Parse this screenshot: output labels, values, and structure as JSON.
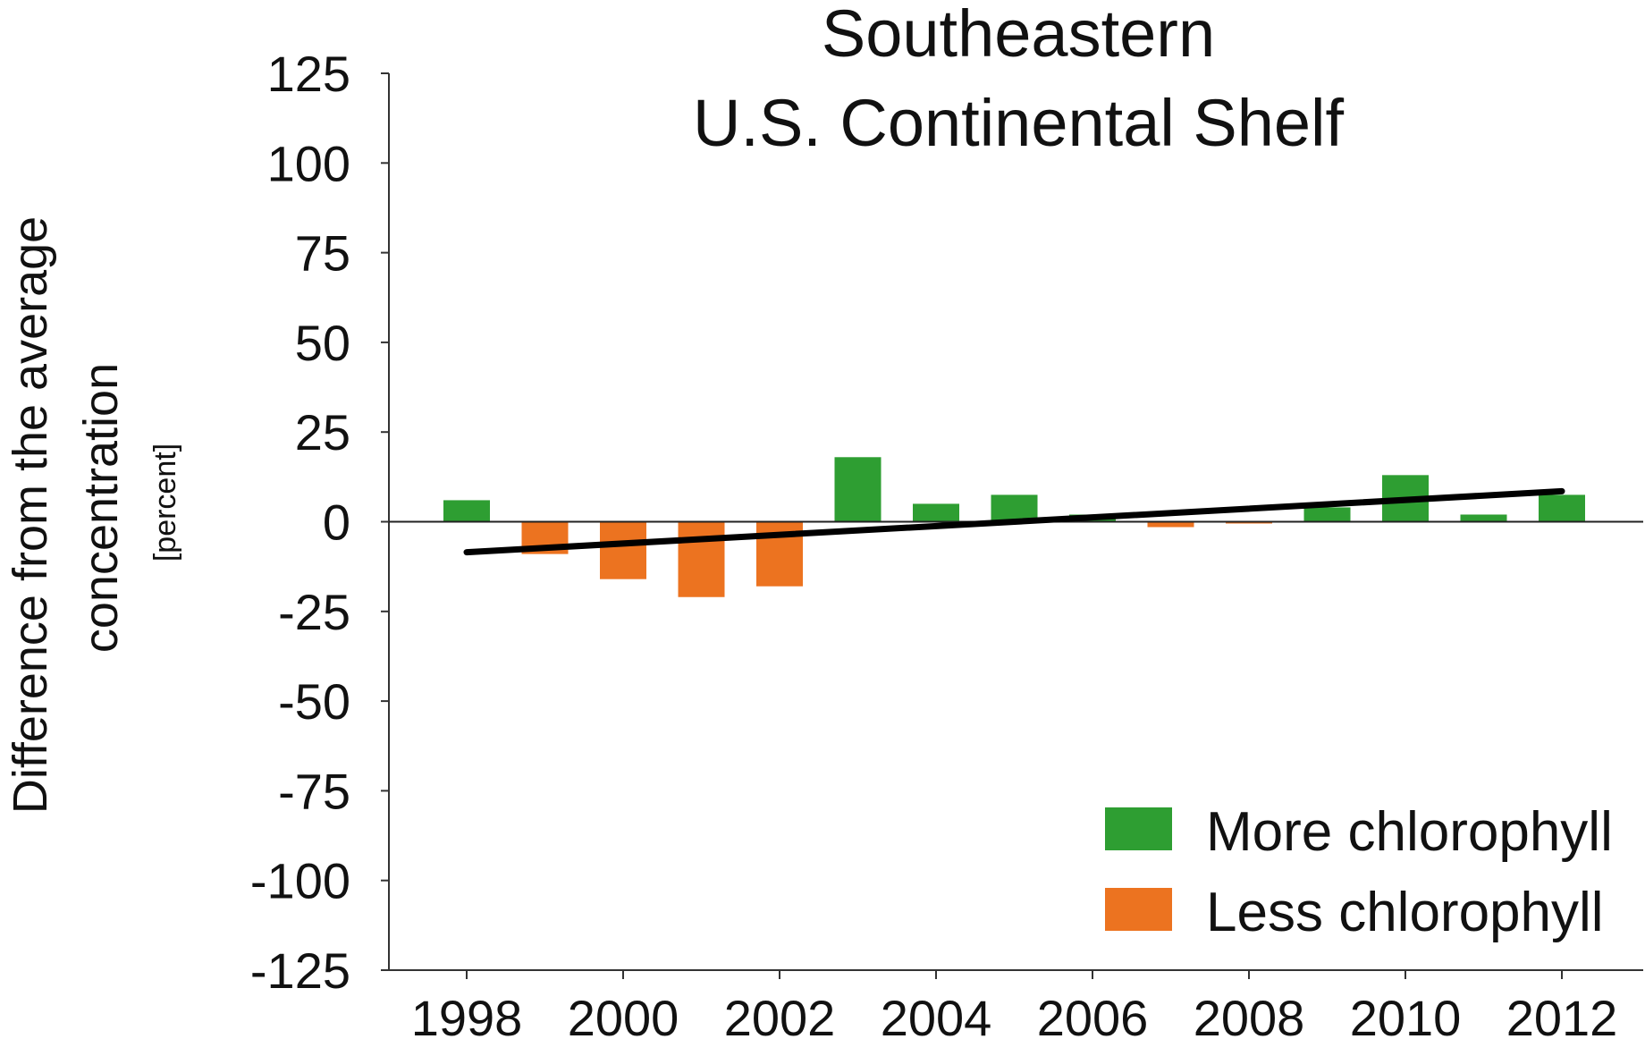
{
  "chart_data": {
    "type": "bar",
    "title": "Southeastern\nU.S. Continental Shelf",
    "title_lines": [
      "Southeastern",
      "U.S. Continental Shelf"
    ],
    "ylabel_lines": [
      "Difference from the average",
      "concentration"
    ],
    "ylabel_unit": "[percent]",
    "ylim": [
      -125,
      125
    ],
    "yticks": [
      125,
      100,
      75,
      50,
      25,
      0,
      -25,
      -50,
      -75,
      -100,
      -125
    ],
    "x": [
      1998,
      1999,
      2000,
      2001,
      2002,
      2003,
      2004,
      2005,
      2006,
      2007,
      2008,
      2009,
      2010,
      2011,
      2012
    ],
    "xtick_labels": [
      "1998",
      "2000",
      "2002",
      "2004",
      "2006",
      "2008",
      "2010",
      "2012"
    ],
    "xtick_years": [
      1998,
      2000,
      2002,
      2004,
      2006,
      2008,
      2010,
      2012
    ],
    "values": [
      6,
      -9,
      -16,
      -21,
      -18,
      18,
      5,
      7.5,
      2,
      -1.5,
      -0.5,
      4,
      13,
      2,
      7.5
    ],
    "trend_line": {
      "x": [
        1998,
        2012
      ],
      "y": [
        -8.5,
        8.5
      ]
    },
    "grid": false,
    "legend": {
      "position": "bottom-right",
      "items": [
        {
          "label": "More chlorophyll",
          "color": "#2e9e32"
        },
        {
          "label": "Less chlorophyll",
          "color": "#ec7320"
        }
      ]
    },
    "colors": {
      "positive": "#2e9e32",
      "negative": "#ec7320",
      "trend": "#000000",
      "axis": "#333333"
    }
  }
}
